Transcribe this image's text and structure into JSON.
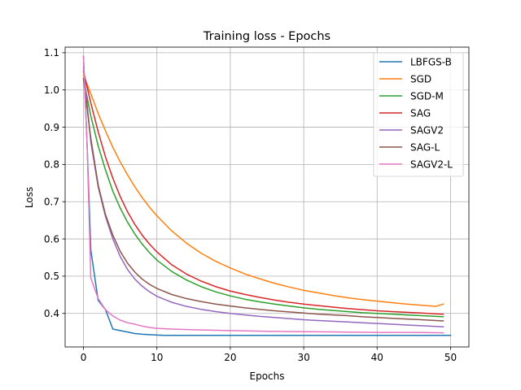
{
  "chart_data": {
    "type": "line",
    "title": "Training loss - Epochs",
    "xlabel": "Epochs",
    "ylabel": "Loss",
    "xlim": [
      -2.5,
      52.5
    ],
    "ylim": [
      0.31,
      1.115
    ],
    "xticks": [
      0,
      10,
      20,
      30,
      40,
      50
    ],
    "yticks": [
      0.4,
      0.5,
      0.6,
      0.7,
      0.8,
      0.9,
      1.0,
      1.1
    ],
    "ytick_labels": [
      "0.4",
      "0.5",
      "0.6",
      "0.7",
      "0.8",
      "0.9",
      "1.0",
      "1.1"
    ],
    "grid": true,
    "legend_position": "upper right",
    "series": [
      {
        "name": "LBFGS-B",
        "color": "#1f77b4",
        "x": [
          0,
          0.5,
          1,
          2,
          3,
          4,
          5,
          6,
          7,
          8,
          9,
          10,
          11,
          12,
          15,
          20,
          30,
          40,
          50
        ],
        "y": [
          1.09,
          0.85,
          0.57,
          0.435,
          0.41,
          0.358,
          0.354,
          0.35,
          0.346,
          0.344,
          0.343,
          0.342,
          0.341,
          0.341,
          0.341,
          0.341,
          0.341,
          0.341,
          0.341
        ]
      },
      {
        "name": "SGD",
        "color": "#ff7f0e",
        "x": [
          0,
          1,
          2,
          3,
          4,
          5,
          6,
          7,
          8,
          9,
          10,
          12,
          14,
          16,
          18,
          20,
          22,
          24,
          26,
          28,
          30,
          32,
          34,
          36,
          38,
          40,
          42,
          44,
          46,
          48,
          49
        ],
        "y": [
          1.04,
          0.99,
          0.937,
          0.89,
          0.846,
          0.807,
          0.772,
          0.74,
          0.711,
          0.685,
          0.662,
          0.622,
          0.589,
          0.562,
          0.54,
          0.522,
          0.506,
          0.493,
          0.481,
          0.471,
          0.462,
          0.455,
          0.448,
          0.442,
          0.437,
          0.433,
          0.429,
          0.425,
          0.422,
          0.419,
          0.425
        ]
      },
      {
        "name": "SGD-M",
        "color": "#2ca02c",
        "x": [
          0,
          1,
          2,
          3,
          4,
          5,
          6,
          7,
          8,
          9,
          10,
          12,
          14,
          16,
          18,
          20,
          22,
          24,
          26,
          28,
          30,
          32,
          34,
          36,
          38,
          40,
          42,
          44,
          46,
          48,
          49
        ],
        "y": [
          1.03,
          0.93,
          0.85,
          0.785,
          0.728,
          0.683,
          0.645,
          0.613,
          0.586,
          0.563,
          0.543,
          0.513,
          0.49,
          0.472,
          0.458,
          0.447,
          0.438,
          0.431,
          0.425,
          0.42,
          0.415,
          0.411,
          0.408,
          0.405,
          0.402,
          0.4,
          0.398,
          0.396,
          0.394,
          0.392,
          0.391
        ]
      },
      {
        "name": "SAG",
        "color": "#d62728",
        "x": [
          0,
          1,
          2,
          3,
          4,
          5,
          6,
          7,
          8,
          9,
          10,
          12,
          14,
          16,
          18,
          20,
          22,
          24,
          26,
          28,
          30,
          32,
          34,
          36,
          38,
          40,
          42,
          44,
          46,
          48,
          49
        ],
        "y": [
          1.05,
          0.965,
          0.888,
          0.82,
          0.763,
          0.714,
          0.673,
          0.639,
          0.61,
          0.586,
          0.565,
          0.531,
          0.506,
          0.487,
          0.472,
          0.46,
          0.451,
          0.443,
          0.436,
          0.43,
          0.425,
          0.421,
          0.417,
          0.413,
          0.41,
          0.407,
          0.405,
          0.403,
          0.401,
          0.399,
          0.398
        ]
      },
      {
        "name": "SAGV2",
        "color": "#9467bd",
        "x": [
          0,
          1,
          2,
          3,
          4,
          5,
          6,
          7,
          8,
          9,
          10,
          12,
          14,
          16,
          18,
          20,
          22,
          24,
          26,
          28,
          30,
          32,
          34,
          36,
          38,
          40,
          42,
          44,
          46,
          48,
          49
        ],
        "y": [
          1.06,
          0.86,
          0.74,
          0.66,
          0.6,
          0.553,
          0.518,
          0.492,
          0.473,
          0.458,
          0.446,
          0.43,
          0.419,
          0.411,
          0.405,
          0.4,
          0.396,
          0.392,
          0.389,
          0.386,
          0.383,
          0.381,
          0.379,
          0.377,
          0.375,
          0.373,
          0.371,
          0.369,
          0.367,
          0.365,
          0.364
        ]
      },
      {
        "name": "SAG-L",
        "color": "#8c564b",
        "x": [
          0,
          1,
          2,
          3,
          4,
          5,
          6,
          7,
          8,
          9,
          10,
          12,
          14,
          16,
          18,
          20,
          22,
          24,
          26,
          28,
          30,
          32,
          34,
          36,
          38,
          40,
          42,
          44,
          46,
          48,
          49
        ],
        "y": [
          1.03,
          0.87,
          0.745,
          0.665,
          0.61,
          0.567,
          0.535,
          0.511,
          0.492,
          0.478,
          0.467,
          0.451,
          0.44,
          0.432,
          0.425,
          0.42,
          0.415,
          0.411,
          0.407,
          0.404,
          0.401,
          0.398,
          0.396,
          0.394,
          0.391,
          0.389,
          0.387,
          0.385,
          0.383,
          0.381,
          0.38
        ]
      },
      {
        "name": "SAGV2-L",
        "color": "#e377c2",
        "x": [
          0,
          0.5,
          1,
          2,
          3,
          4,
          5,
          6,
          7,
          8,
          9,
          10,
          12,
          15,
          20,
          25,
          30,
          35,
          40,
          45,
          49
        ],
        "y": [
          1.09,
          0.85,
          0.495,
          0.44,
          0.41,
          0.393,
          0.382,
          0.375,
          0.371,
          0.366,
          0.362,
          0.36,
          0.358,
          0.356,
          0.354,
          0.352,
          0.351,
          0.35,
          0.349,
          0.349,
          0.348
        ]
      }
    ]
  }
}
